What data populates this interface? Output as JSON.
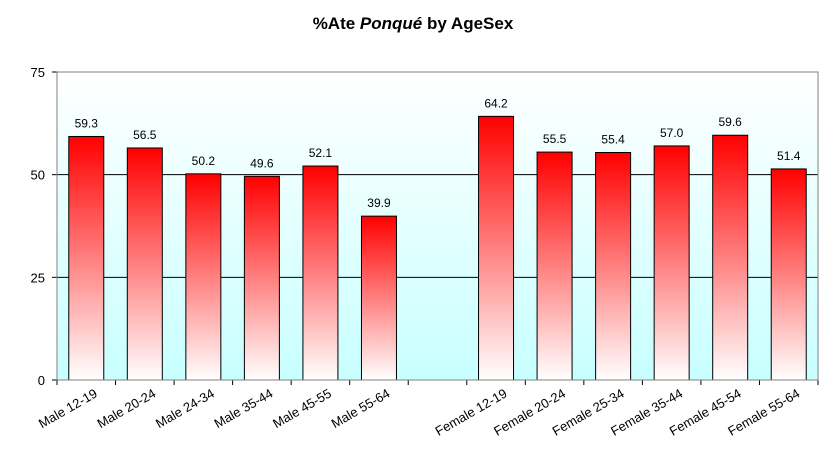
{
  "chart_data": {
    "type": "bar",
    "title_prefix": "%Ate ",
    "title_emph": "Ponqué",
    "title_suffix": " by AgeSex",
    "categories": [
      "Male 12-19",
      "Male 20-24",
      "Male 24-34",
      "Male 35-44",
      "Male 45-55",
      "Male 55-64",
      "",
      "Female 12-19",
      "Female 20-24",
      "Female 25-34",
      "Female 35-44",
      "Female 45-54",
      "Female 55-64"
    ],
    "values": [
      59.3,
      56.5,
      50.2,
      49.6,
      52.1,
      39.9,
      null,
      64.2,
      55.5,
      55.4,
      57.0,
      59.6,
      51.4
    ],
    "value_labels": [
      "59.3",
      "56.5",
      "50.2",
      "49.6",
      "52.1",
      "39.9",
      "",
      "64.2",
      "55.5",
      "55.4",
      "57.0",
      "59.6",
      "51.4"
    ],
    "ylim": [
      0,
      75
    ],
    "yticks": [
      "0",
      "25",
      "50",
      "75"
    ],
    "grid": true,
    "xlabel": "",
    "ylabel": "",
    "colors": {
      "bar_top": "#ff0000",
      "bar_bottom": "#ffffff",
      "plot_bg_top": "#ffffff",
      "plot_bg_bottom": "#c8ffff",
      "gridline": "#000000",
      "bar_outline": "#000000"
    }
  }
}
